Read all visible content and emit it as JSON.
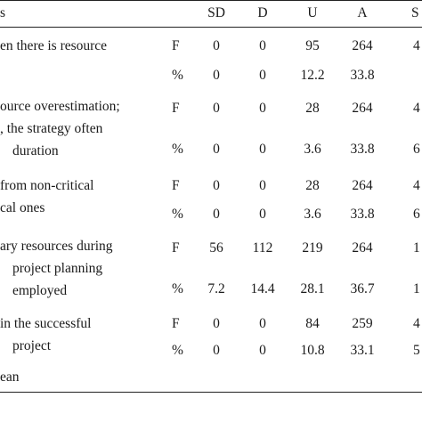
{
  "table": {
    "header": {
      "description": "s",
      "columns": [
        "SD",
        "D",
        "U",
        "A",
        "S"
      ]
    },
    "rows": [
      {
        "description_lines": [
          "en there is resource"
        ],
        "stats": [
          {
            "label": "F",
            "values": [
              "0",
              "0",
              "95",
              "264",
              "4"
            ]
          },
          {
            "label": "%",
            "values": [
              "0",
              "0",
              "12.2",
              "33.8",
              ""
            ]
          }
        ]
      },
      {
        "description_lines": [
          "ource overestimation;",
          ", the strategy often",
          "duration"
        ],
        "stats": [
          {
            "label": "F",
            "values": [
              "0",
              "0",
              "28",
              "264",
              "4"
            ]
          },
          {
            "label": "%",
            "values": [
              "0",
              "0",
              "3.6",
              "33.8",
              "6"
            ]
          }
        ]
      },
      {
        "description_lines": [
          "from non-critical",
          "cal ones"
        ],
        "stats": [
          {
            "label": "F",
            "values": [
              "0",
              "0",
              "28",
              "264",
              "4"
            ]
          },
          {
            "label": "%",
            "values": [
              "0",
              "0",
              "3.6",
              "33.8",
              "6"
            ]
          }
        ]
      },
      {
        "description_lines": [
          "ary resources during",
          "project planning",
          "employed"
        ],
        "stats": [
          {
            "label": "F",
            "values": [
              "56",
              "112",
              "219",
              "264",
              "1"
            ]
          },
          {
            "label": "%",
            "values": [
              "7.2",
              "14.4",
              "28.1",
              "36.7",
              "1"
            ]
          }
        ]
      },
      {
        "description_lines": [
          " in the successful",
          "project"
        ],
        "stats": [
          {
            "label": "F",
            "values": [
              "0",
              "0",
              "84",
              "259",
              "4"
            ]
          },
          {
            "label": "%",
            "values": [
              "0",
              "0",
              "10.8",
              "33.1",
              "5"
            ]
          }
        ]
      }
    ],
    "footer": "ean"
  }
}
